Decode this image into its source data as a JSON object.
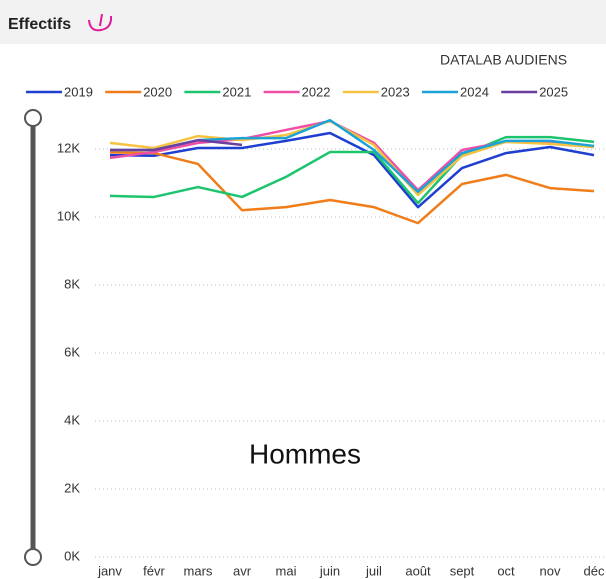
{
  "chart_data": {
    "type": "line",
    "title": "Effectifs",
    "subtitle": "DATALAB AUDIENS",
    "annotation": "Hommes",
    "categories": [
      "janv",
      "févr",
      "mars",
      "avr",
      "mai",
      "juin",
      "juil",
      "août",
      "sept",
      "oct",
      "nov",
      "déc"
    ],
    "series": [
      {
        "name": "2019",
        "color": "#1f3fd0",
        "values": [
          11820,
          11800,
          12030,
          12030,
          12240,
          12470,
          11820,
          10290,
          11440,
          11880,
          12060,
          11820
        ]
      },
      {
        "name": "2020",
        "color": "#f07d1a",
        "values": [
          11900,
          11880,
          11560,
          10200,
          10290,
          10500,
          10290,
          9820,
          10970,
          11240,
          10850,
          10760
        ]
      },
      {
        "name": "2021",
        "color": "#1cc46e",
        "values": [
          10620,
          10590,
          10880,
          10590,
          11180,
          11910,
          11910,
          10410,
          11820,
          12350,
          12350,
          12210
        ]
      },
      {
        "name": "2022",
        "color": "#ef4fa6",
        "values": [
          11740,
          11910,
          12180,
          12290,
          12560,
          12820,
          12180,
          10790,
          11970,
          12210,
          12210,
          12060
        ]
      },
      {
        "name": "2023",
        "color": "#f5c242",
        "values": [
          12180,
          12030,
          12380,
          12260,
          12410,
          12820,
          12120,
          10650,
          11790,
          12210,
          12150,
          12060
        ]
      },
      {
        "name": "2024",
        "color": "#1ba3d8",
        "values": [
          11970,
          11970,
          12260,
          12320,
          12320,
          12850,
          11970,
          10740,
          11880,
          12240,
          12240,
          12090
        ]
      },
      {
        "name": "2025",
        "color": "#6a3fa0",
        "values": [
          11970,
          11970,
          12260,
          12120,
          null,
          null,
          null,
          null,
          null,
          null,
          null,
          null
        ]
      }
    ],
    "ylim": [
      0,
      13000
    ],
    "yticks": [
      {
        "value": 0,
        "label": "0K"
      },
      {
        "value": 2000,
        "label": "2K"
      },
      {
        "value": 4000,
        "label": "4K"
      },
      {
        "value": 6000,
        "label": "6K"
      },
      {
        "value": 8000,
        "label": "8K"
      },
      {
        "value": 10000,
        "label": "10K"
      },
      {
        "value": 12000,
        "label": "12K"
      }
    ],
    "grid": true
  }
}
